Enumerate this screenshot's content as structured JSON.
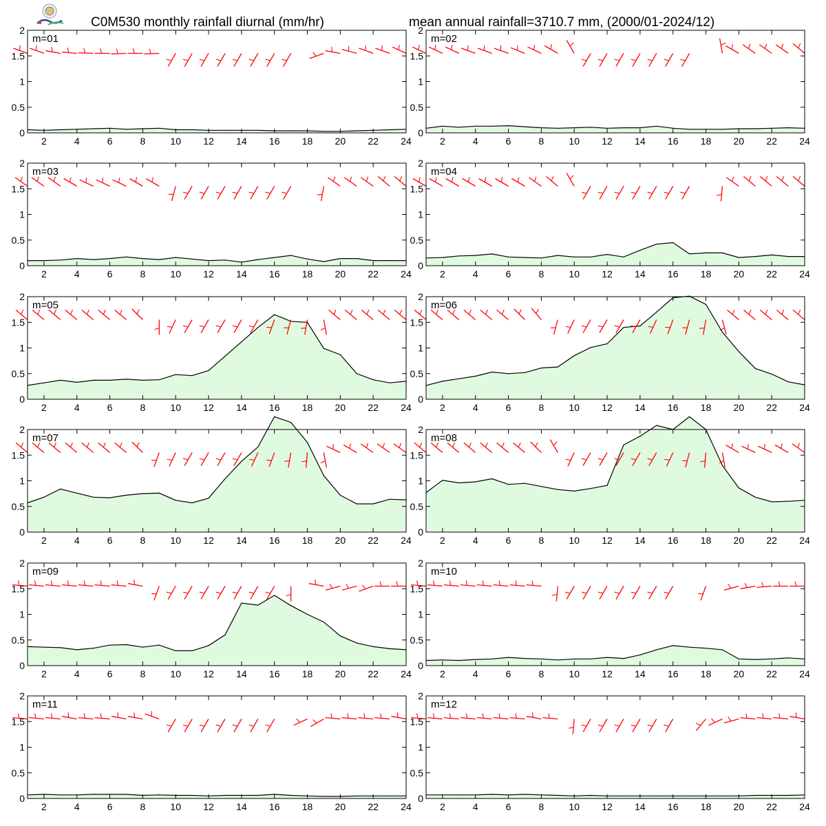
{
  "header": {
    "title_left": "C0M530 monthly rainfall diurnal (mm/hr)",
    "title_right": "mean annual rainfall=3710.7 mm, (2000/01-2024/12)"
  },
  "colors": {
    "fill": "#e0fae0",
    "line": "#000000",
    "barb": "#ff0000",
    "frame": "#000000"
  },
  "chart_data": {
    "type": "area",
    "x": [
      1,
      2,
      3,
      4,
      5,
      6,
      7,
      8,
      9,
      10,
      11,
      12,
      13,
      14,
      15,
      16,
      17,
      18,
      19,
      20,
      21,
      22,
      23,
      24
    ],
    "xlim": [
      1,
      24
    ],
    "ylim": [
      0,
      2
    ],
    "x_ticks": [
      2,
      4,
      6,
      8,
      10,
      12,
      14,
      16,
      18,
      20,
      22,
      24
    ],
    "y_ticks": [
      0,
      0.5,
      1,
      1.5,
      2
    ],
    "y_tick_labels": [
      "0",
      "0.5",
      "1",
      "1.5",
      "2"
    ],
    "wind_barb_level": 1.55,
    "panels": [
      {
        "label": "m=01",
        "values": [
          0.06,
          0.05,
          0.06,
          0.07,
          0.08,
          0.09,
          0.07,
          0.08,
          0.09,
          0.06,
          0.06,
          0.05,
          0.05,
          0.05,
          0.05,
          0.04,
          0.04,
          0.04,
          0.03,
          0.03,
          0.04,
          0.05,
          0.06,
          0.07
        ],
        "wind_dir": [
          290,
          290,
          280,
          275,
          272,
          270,
          268,
          270,
          268,
          210,
          210,
          210,
          210,
          210,
          210,
          210,
          210,
          null,
          250,
          280,
          285,
          290,
          290,
          295
        ]
      },
      {
        "label": "m=02",
        "values": [
          0.09,
          0.13,
          0.11,
          0.13,
          0.13,
          0.14,
          0.12,
          0.1,
          0.09,
          0.1,
          0.11,
          0.09,
          0.1,
          0.1,
          0.13,
          0.09,
          0.07,
          0.07,
          0.07,
          0.08,
          0.08,
          0.09,
          0.1,
          0.09
        ],
        "wind_dir": [
          295,
          295,
          295,
          290,
          290,
          290,
          292,
          295,
          300,
          330,
          210,
          210,
          210,
          210,
          210,
          210,
          210,
          null,
          350,
          300,
          305,
          305,
          305,
          310
        ]
      },
      {
        "label": "m=03",
        "values": [
          0.1,
          0.1,
          0.11,
          0.14,
          0.12,
          0.14,
          0.17,
          0.14,
          0.12,
          0.16,
          0.13,
          0.1,
          0.11,
          0.07,
          0.12,
          0.16,
          0.2,
          0.13,
          0.08,
          0.14,
          0.14,
          0.1,
          0.1,
          0.1
        ],
        "wind_dir": [
          305,
          305,
          305,
          300,
          295,
          295,
          295,
          300,
          300,
          195,
          210,
          210,
          210,
          210,
          210,
          210,
          210,
          null,
          190,
          305,
          305,
          305,
          310,
          310
        ]
      },
      {
        "label": "m=04",
        "values": [
          0.15,
          0.16,
          0.19,
          0.2,
          0.23,
          0.17,
          0.16,
          0.15,
          0.2,
          0.17,
          0.17,
          0.22,
          0.17,
          0.3,
          0.42,
          0.45,
          0.23,
          0.25,
          0.25,
          0.16,
          0.18,
          0.21,
          0.18,
          0.18
        ],
        "wind_dir": [
          300,
          300,
          300,
          300,
          300,
          300,
          300,
          305,
          310,
          330,
          210,
          210,
          210,
          210,
          210,
          210,
          210,
          null,
          185,
          305,
          310,
          310,
          310,
          310
        ]
      },
      {
        "label": "m=05",
        "values": [
          0.27,
          0.32,
          0.37,
          0.33,
          0.37,
          0.37,
          0.39,
          0.37,
          0.38,
          0.48,
          0.46,
          0.56,
          0.84,
          1.12,
          1.4,
          1.65,
          1.52,
          1.5,
          0.99,
          0.87,
          0.5,
          0.38,
          0.32,
          0.35
        ],
        "wind_dir": [
          310,
          310,
          310,
          310,
          310,
          310,
          310,
          315,
          180,
          205,
          210,
          210,
          210,
          210,
          210,
          200,
          195,
          190,
          170,
          310,
          310,
          310,
          310,
          310
        ]
      },
      {
        "label": "m=06",
        "values": [
          0.27,
          0.35,
          0.4,
          0.45,
          0.53,
          0.5,
          0.52,
          0.61,
          0.63,
          0.85,
          1.01,
          1.08,
          1.4,
          1.43,
          1.7,
          1.98,
          2.01,
          1.85,
          1.31,
          0.93,
          0.6,
          0.49,
          0.34,
          0.28
        ],
        "wind_dir": [
          310,
          310,
          310,
          310,
          310,
          310,
          315,
          320,
          195,
          205,
          210,
          210,
          210,
          210,
          205,
          200,
          195,
          190,
          165,
          310,
          310,
          310,
          310,
          310
        ]
      },
      {
        "label": "m=07",
        "values": [
          0.57,
          0.68,
          0.84,
          0.76,
          0.68,
          0.67,
          0.72,
          0.75,
          0.76,
          0.62,
          0.57,
          0.66,
          1.04,
          1.38,
          1.66,
          2.25,
          2.14,
          1.75,
          1.1,
          0.72,
          0.55,
          0.55,
          0.64,
          0.63
        ],
        "wind_dir": [
          310,
          310,
          310,
          310,
          310,
          310,
          310,
          315,
          200,
          205,
          210,
          210,
          210,
          210,
          205,
          200,
          190,
          185,
          170,
          295,
          300,
          305,
          305,
          305
        ]
      },
      {
        "label": "m=08",
        "values": [
          0.77,
          1.01,
          0.96,
          0.98,
          1.04,
          0.93,
          0.95,
          0.89,
          0.83,
          0.8,
          0.85,
          0.91,
          1.7,
          1.87,
          2.08,
          2.0,
          2.25,
          2.0,
          1.3,
          0.86,
          0.68,
          0.59,
          0.6,
          0.62
        ],
        "wind_dir": [
          310,
          310,
          310,
          310,
          310,
          310,
          310,
          315,
          330,
          205,
          210,
          210,
          210,
          210,
          210,
          205,
          195,
          185,
          170,
          300,
          295,
          295,
          300,
          305
        ]
      },
      {
        "label": "m=09",
        "values": [
          0.37,
          0.36,
          0.35,
          0.31,
          0.34,
          0.4,
          0.41,
          0.36,
          0.4,
          0.29,
          0.29,
          0.39,
          0.6,
          1.22,
          1.18,
          1.37,
          1.17,
          1.0,
          0.85,
          0.58,
          0.44,
          0.37,
          0.33,
          0.31
        ],
        "wind_dir": [
          275,
          275,
          275,
          275,
          275,
          275,
          275,
          280,
          200,
          210,
          210,
          210,
          210,
          210,
          210,
          210,
          180,
          null,
          280,
          255,
          255,
          250,
          270,
          270
        ]
      },
      {
        "label": "m=10",
        "values": [
          0.1,
          0.11,
          0.1,
          0.12,
          0.13,
          0.16,
          0.14,
          0.13,
          0.11,
          0.13,
          0.13,
          0.16,
          0.14,
          0.21,
          0.31,
          0.39,
          0.36,
          0.34,
          0.31,
          0.13,
          0.12,
          0.13,
          0.15,
          0.13
        ],
        "wind_dir": [
          275,
          275,
          275,
          275,
          275,
          275,
          275,
          275,
          185,
          210,
          210,
          210,
          210,
          210,
          210,
          210,
          null,
          200,
          null,
          255,
          260,
          265,
          270,
          270
        ]
      },
      {
        "label": "m=11",
        "values": [
          0.07,
          0.08,
          0.07,
          0.07,
          0.08,
          0.08,
          0.08,
          0.06,
          0.07,
          0.06,
          0.06,
          0.05,
          0.06,
          0.06,
          0.06,
          0.08,
          0.06,
          0.05,
          0.04,
          0.04,
          0.05,
          0.05,
          0.05,
          0.05
        ],
        "wind_dir": [
          275,
          275,
          275,
          280,
          275,
          275,
          280,
          280,
          290,
          210,
          210,
          210,
          210,
          210,
          210,
          210,
          null,
          245,
          240,
          275,
          275,
          275,
          275,
          280
        ]
      },
      {
        "label": "m=12",
        "values": [
          0.07,
          0.07,
          0.07,
          0.07,
          0.08,
          0.07,
          0.08,
          0.07,
          0.06,
          0.05,
          0.06,
          0.05,
          0.05,
          0.05,
          0.05,
          0.05,
          0.05,
          0.05,
          0.05,
          0.05,
          0.06,
          0.06,
          0.06,
          0.07
        ],
        "wind_dir": [
          275,
          275,
          275,
          275,
          275,
          275,
          275,
          280,
          275,
          185,
          210,
          210,
          210,
          210,
          210,
          210,
          null,
          220,
          245,
          255,
          275,
          275,
          275,
          280
        ]
      }
    ]
  }
}
